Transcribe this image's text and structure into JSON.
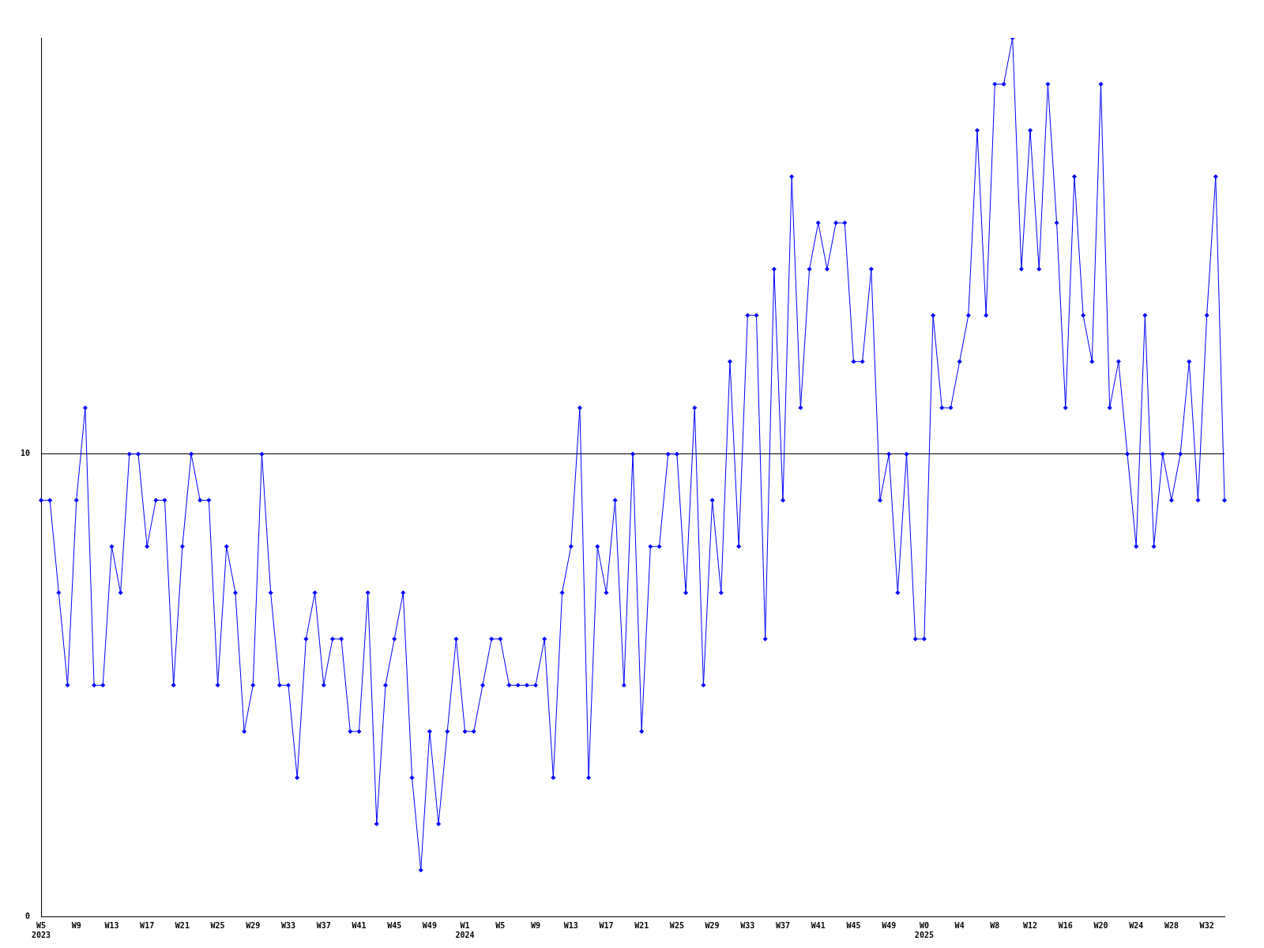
{
  "chart_data": {
    "type": "line",
    "categories": [
      "W5\n2023",
      null,
      null,
      null,
      "W9",
      null,
      null,
      null,
      "W13",
      null,
      null,
      null,
      "W17",
      null,
      null,
      null,
      "W21",
      null,
      null,
      null,
      "W25",
      null,
      null,
      null,
      "W29",
      null,
      null,
      null,
      "W33",
      null,
      null,
      null,
      "W37",
      null,
      null,
      null,
      "W41",
      null,
      null,
      null,
      "W45",
      null,
      null,
      null,
      "W49",
      null,
      null,
      null,
      "W1\n2024",
      null,
      null,
      null,
      "W5",
      null,
      null,
      null,
      "W9",
      null,
      null,
      null,
      "W13",
      null,
      null,
      null,
      "W17",
      null,
      null,
      null,
      "W21",
      null,
      null,
      null,
      "W25",
      null,
      null,
      null,
      "W29",
      null,
      null,
      null,
      "W33",
      null,
      null,
      null,
      "W37",
      null,
      null,
      null,
      "W41",
      null,
      null,
      null,
      "W45",
      null,
      null,
      null,
      "W49",
      null,
      null,
      null,
      "W0\n2025",
      null,
      null,
      null,
      "W4",
      null,
      null,
      null,
      "W8",
      null,
      null,
      null,
      "W12",
      null,
      null,
      null,
      "W16",
      null,
      null,
      null,
      "W20",
      null,
      null,
      null,
      "W24",
      null,
      null,
      null,
      "W28",
      null,
      null,
      null,
      "W32",
      null,
      null
    ],
    "series": [
      {
        "color": "#0000ff",
        "values": [
          9,
          9,
          7,
          5,
          9,
          11,
          5,
          5,
          8,
          7,
          10,
          10,
          8,
          9,
          9,
          5,
          8,
          10,
          9,
          9,
          5,
          8,
          7,
          4,
          5,
          10,
          7,
          5,
          5,
          3,
          6,
          7,
          5,
          6,
          6,
          4,
          4,
          7,
          2,
          5,
          6,
          7,
          3,
          1,
          4,
          2,
          4,
          6,
          4,
          4,
          5,
          6,
          6,
          5,
          5,
          5,
          5,
          6,
          3,
          7,
          8,
          11,
          3,
          8,
          7,
          9,
          5,
          10,
          4,
          8,
          8,
          10,
          10,
          7,
          11,
          5,
          9,
          7,
          12,
          8,
          13,
          13,
          6,
          14,
          9,
          16,
          11,
          14,
          15,
          14,
          15,
          15,
          12,
          12,
          14,
          9,
          10,
          7,
          10,
          6,
          6,
          13,
          11,
          11,
          12,
          13,
          17,
          13,
          18,
          18,
          19,
          14,
          17,
          14,
          18,
          15,
          11,
          16,
          13,
          12,
          18,
          11,
          12,
          10,
          8,
          13,
          8,
          10,
          9,
          10,
          12,
          9,
          13,
          16,
          9
        ]
      }
    ],
    "ylim": [
      0,
      19
    ],
    "yticks": [
      0,
      10
    ],
    "grid": "y",
    "legend": false,
    "marker": "diamond",
    "line_style": "solid"
  }
}
